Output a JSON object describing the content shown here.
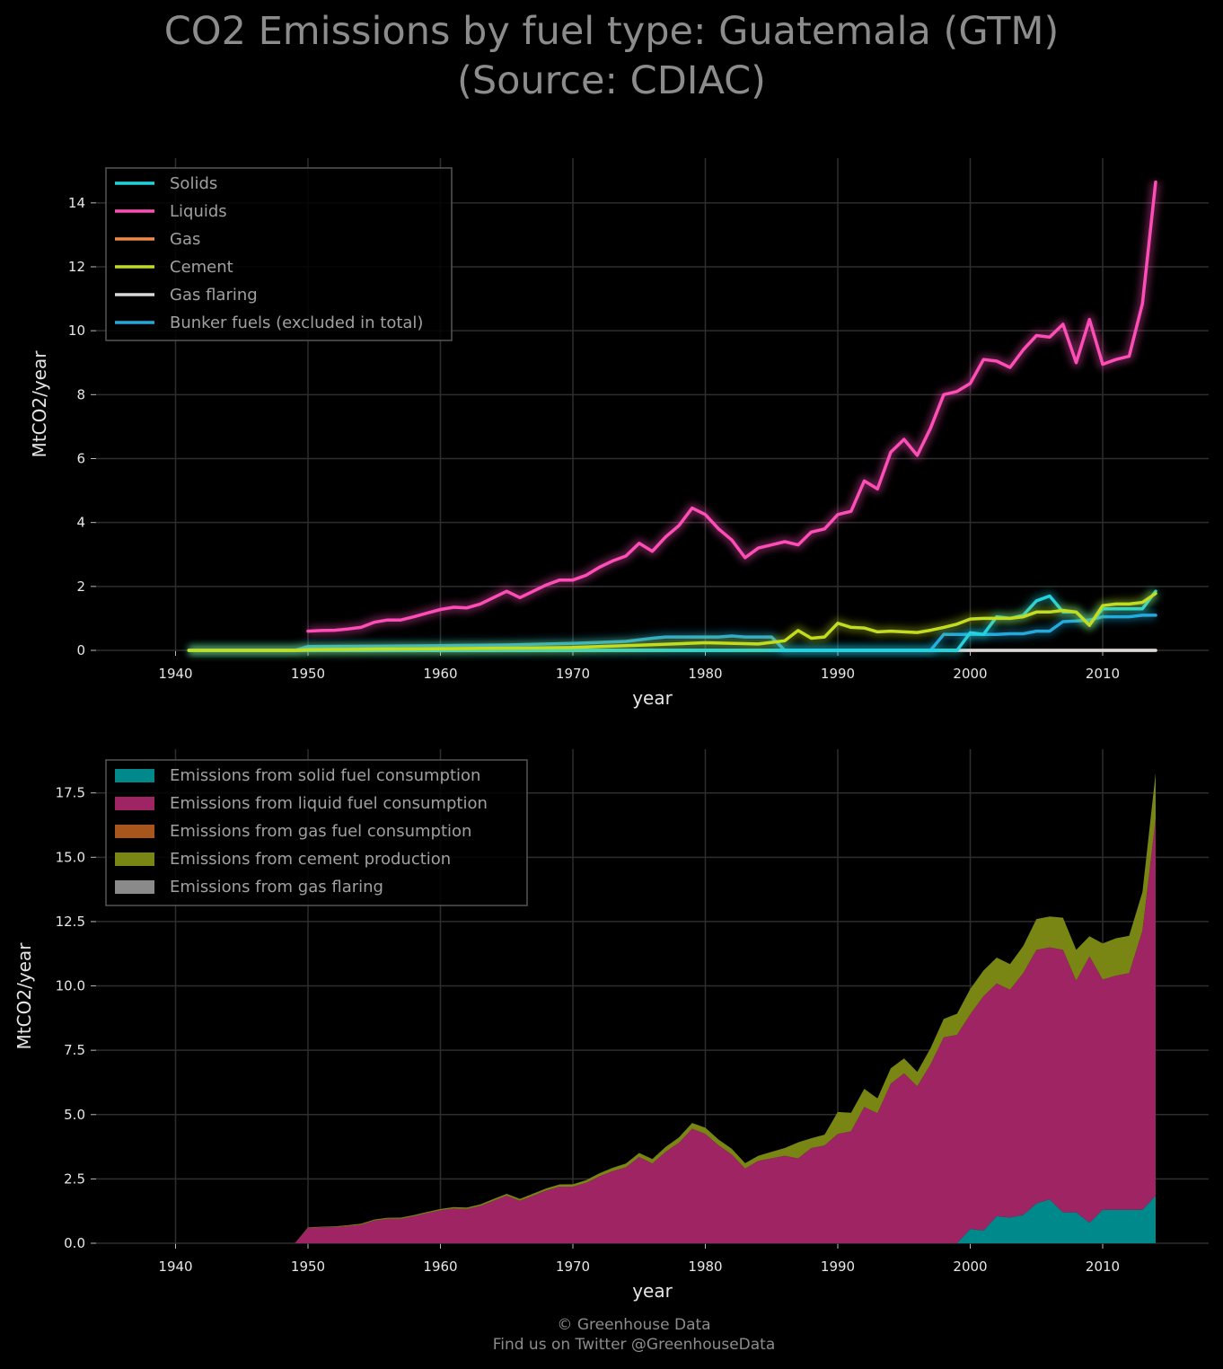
{
  "title": {
    "line1": "CO2 Emissions by fuel type: Guatemala (GTM)",
    "line2": "(Source: CDIAC)"
  },
  "footer": {
    "line1": "© Greenhouse Data",
    "line2": "Find us on Twitter @GreenhouseData"
  },
  "colors": {
    "background": "#000000",
    "grid": "#2e2e2e",
    "solids": "#22d3de",
    "liquids": "#ff4db8",
    "gas": "#f08a4b",
    "cement": "#c2dc1e",
    "gas_flaring": "#d9d9d9",
    "bunker": "#23a9dc",
    "area_solid": "#00898b",
    "area_liquid": "#9e2463",
    "area_gas": "#a8561c",
    "area_cement": "#7a8613",
    "area_flaring": "#8a8a8a"
  },
  "chart_data": [
    {
      "type": "line",
      "xlabel": "year",
      "ylabel": "MtCO2/year",
      "xlim": [
        1934,
        2018
      ],
      "ylim": [
        0,
        15.4
      ],
      "xticks": [
        1940,
        1950,
        1960,
        1970,
        1980,
        1990,
        2000,
        2010
      ],
      "yticks": [
        0,
        2,
        4,
        6,
        8,
        10,
        12,
        14
      ],
      "grid": true,
      "legend_position": "top-left",
      "series": [
        {
          "name": "Solids",
          "color_key": "solids",
          "x": [
            1941,
            1997,
            1998,
            1999,
            2000,
            2001,
            2002,
            2003,
            2004,
            2005,
            2006,
            2007,
            2008,
            2009,
            2010,
            2011,
            2012,
            2013,
            2014
          ],
          "y": [
            0,
            0,
            0,
            0,
            0.55,
            0.5,
            1.05,
            1.0,
            1.1,
            1.55,
            1.7,
            1.2,
            1.2,
            0.8,
            1.3,
            1.3,
            1.3,
            1.3,
            1.85
          ]
        },
        {
          "name": "Liquids",
          "color_key": "liquids",
          "x": [
            1950,
            1951,
            1952,
            1953,
            1954,
            1955,
            1956,
            1957,
            1958,
            1959,
            1960,
            1961,
            1962,
            1963,
            1964,
            1965,
            1966,
            1967,
            1968,
            1969,
            1970,
            1971,
            1972,
            1973,
            1974,
            1975,
            1976,
            1977,
            1978,
            1979,
            1980,
            1981,
            1982,
            1983,
            1984,
            1985,
            1986,
            1987,
            1988,
            1989,
            1990,
            1991,
            1992,
            1993,
            1994,
            1995,
            1996,
            1997,
            1998,
            1999,
            2000,
            2001,
            2002,
            2003,
            2004,
            2005,
            2006,
            2007,
            2008,
            2009,
            2010,
            2011,
            2012,
            2013,
            2014
          ],
          "y": [
            0.6,
            0.62,
            0.63,
            0.67,
            0.72,
            0.88,
            0.95,
            0.95,
            1.05,
            1.17,
            1.28,
            1.35,
            1.33,
            1.45,
            1.65,
            1.85,
            1.65,
            1.85,
            2.05,
            2.2,
            2.2,
            2.35,
            2.6,
            2.8,
            2.95,
            3.35,
            3.1,
            3.55,
            3.9,
            4.45,
            4.25,
            3.8,
            3.45,
            2.9,
            3.2,
            3.3,
            3.4,
            3.3,
            3.7,
            3.8,
            4.25,
            4.35,
            5.3,
            5.05,
            6.2,
            6.6,
            6.1,
            6.95,
            8.0,
            8.1,
            8.35,
            9.1,
            9.05,
            8.85,
            9.4,
            9.85,
            9.8,
            10.2,
            9.0,
            10.35,
            8.95,
            9.1,
            9.2,
            10.85,
            14.65
          ]
        },
        {
          "name": "Gas",
          "color_key": "gas",
          "x": [
            1941,
            2014
          ],
          "y": [
            0,
            0
          ]
        },
        {
          "name": "Cement",
          "color_key": "cement",
          "x": [
            1941,
            1949,
            1950,
            1955,
            1960,
            1965,
            1970,
            1975,
            1980,
            1984,
            1985,
            1986,
            1987,
            1988,
            1989,
            1990,
            1991,
            1992,
            1993,
            1994,
            1995,
            1996,
            1997,
            1998,
            1999,
            2000,
            2001,
            2002,
            2003,
            2004,
            2005,
            2006,
            2007,
            2008,
            2009,
            2010,
            2011,
            2012,
            2013,
            2014
          ],
          "y": [
            0,
            0,
            0.02,
            0.04,
            0.05,
            0.07,
            0.09,
            0.16,
            0.24,
            0.2,
            0.25,
            0.3,
            0.62,
            0.38,
            0.42,
            0.85,
            0.72,
            0.7,
            0.58,
            0.6,
            0.58,
            0.56,
            0.63,
            0.72,
            0.82,
            0.98,
            1.0,
            1.0,
            1.0,
            1.05,
            1.2,
            1.2,
            1.25,
            1.2,
            0.78,
            1.4,
            1.45,
            1.45,
            1.5,
            1.78
          ]
        },
        {
          "name": "Gas flaring",
          "color_key": "gas_flaring",
          "x": [
            1941,
            2014
          ],
          "y": [
            0,
            0
          ]
        },
        {
          "name": "Bunker fuels (excluded in total)",
          "color_key": "bunker",
          "x": [
            1941,
            1949,
            1950,
            1955,
            1960,
            1965,
            1970,
            1974,
            1975,
            1976,
            1977,
            1978,
            1979,
            1980,
            1981,
            1982,
            1983,
            1984,
            1985,
            1986,
            1996,
            1997,
            1998,
            1999,
            2000,
            2001,
            2002,
            2003,
            2004,
            2005,
            2006,
            2007,
            2008,
            2009,
            2010,
            2011,
            2012,
            2013,
            2014
          ],
          "y": [
            0,
            0,
            0.12,
            0.13,
            0.15,
            0.17,
            0.22,
            0.28,
            0.33,
            0.38,
            0.42,
            0.42,
            0.42,
            0.42,
            0.42,
            0.45,
            0.42,
            0.42,
            0.42,
            0.0,
            0.0,
            0.0,
            0.5,
            0.5,
            0.5,
            0.5,
            0.5,
            0.52,
            0.52,
            0.6,
            0.6,
            0.9,
            0.92,
            0.95,
            1.05,
            1.05,
            1.05,
            1.1,
            1.1
          ]
        }
      ]
    },
    {
      "type": "area",
      "stacked": true,
      "xlabel": "year",
      "ylabel": "MtCO2/year",
      "xlim": [
        1934,
        2018
      ],
      "ylim": [
        0,
        19.2
      ],
      "xticks": [
        1940,
        1950,
        1960,
        1970,
        1980,
        1990,
        2000,
        2010
      ],
      "yticks": [
        0.0,
        2.5,
        5.0,
        7.5,
        10.0,
        12.5,
        15.0,
        17.5
      ],
      "ytick_labels": [
        "0.0",
        "2.5",
        "5.0",
        "7.5",
        "10.0",
        "12.5",
        "15.0",
        "17.5"
      ],
      "grid": true,
      "legend_position": "top-left",
      "series_order": [
        "Emissions from solid fuel consumption",
        "Emissions from liquid fuel consumption",
        "Emissions from gas fuel consumption",
        "Emissions from cement production",
        "Emissions from gas flaring"
      ],
      "legend": [
        {
          "name": "Emissions from solid fuel consumption",
          "color_key": "area_solid"
        },
        {
          "name": "Emissions from liquid fuel consumption",
          "color_key": "area_liquid"
        },
        {
          "name": "Emissions from gas fuel consumption",
          "color_key": "area_gas"
        },
        {
          "name": "Emissions from cement production",
          "color_key": "area_cement"
        },
        {
          "name": "Emissions from gas flaring",
          "color_key": "area_flaring"
        }
      ],
      "note": "stacked series reuse the line-chart values (Solids, Liquids, Gas, Cement, Gas flaring)"
    }
  ]
}
